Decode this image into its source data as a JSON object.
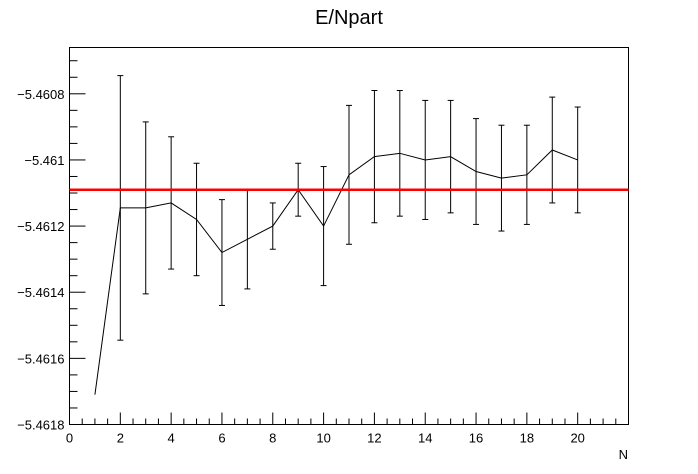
{
  "chart_data": {
    "type": "line",
    "title": "E/Npart",
    "xlabel": "N",
    "ylabel": "",
    "xlim": [
      0,
      22
    ],
    "ylim": [
      -5.4618,
      -5.46066
    ],
    "x_ticks": [
      0,
      2,
      4,
      6,
      8,
      10,
      12,
      14,
      16,
      18,
      20
    ],
    "y_ticks": [
      -5.4618,
      -5.4616,
      -5.4614,
      -5.4612,
      -5.461,
      -5.4608
    ],
    "y_tick_labels": [
      "−5.4618",
      "−5.4616",
      "−5.4614",
      "−5.4612",
      "−5.461",
      "−5.4608"
    ],
    "series": [
      {
        "color": "#000000",
        "x": [
          1,
          2,
          3,
          4,
          5,
          6,
          7,
          8,
          9,
          10,
          11,
          12,
          13,
          14,
          15,
          16,
          17,
          18,
          19,
          20
        ],
        "y": [
          -5.46171,
          -5.461145,
          -5.461145,
          -5.46113,
          -5.46118,
          -5.46128,
          -5.46124,
          -5.4612,
          -5.46109,
          -5.4612,
          -5.461045,
          -5.46099,
          -5.46098,
          -5.461,
          -5.46099,
          -5.461035,
          -5.461055,
          -5.461045,
          -5.46097,
          -5.461
        ],
        "err": [
          0,
          0.0004,
          0.00026,
          0.0002,
          0.00017,
          0.00016,
          0.00015,
          7e-05,
          8e-05,
          0.00018,
          0.00021,
          0.0002,
          0.00019,
          0.00018,
          0.00017,
          0.00016,
          0.00016,
          0.00015,
          0.00016,
          0.00016
        ]
      }
    ],
    "reference_line": {
      "y": -5.46109,
      "color": "#ff0000"
    },
    "grid": false,
    "legend": "none"
  }
}
